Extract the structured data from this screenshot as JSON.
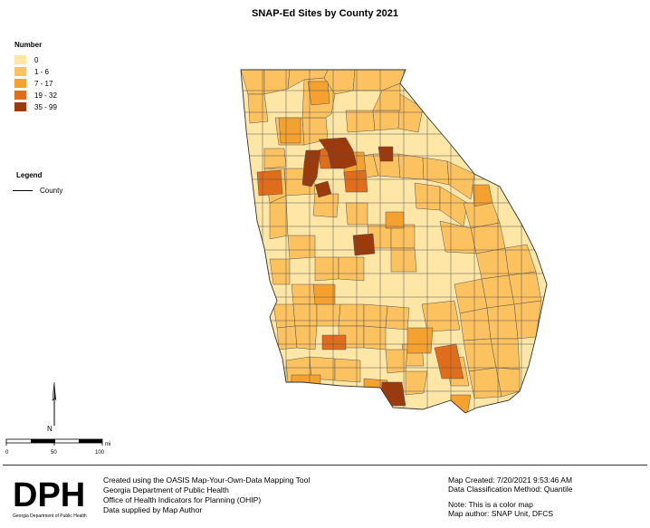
{
  "title": "SNAP-Ed Sites by County 2021",
  "number_legend": {
    "heading": "Number",
    "classes": [
      {
        "label": "0",
        "color": "#fde6a6"
      },
      {
        "label": "1 - 6",
        "color": "#fbc25f"
      },
      {
        "label": "7 - 17",
        "color": "#f4a130"
      },
      {
        "label": "19 - 32",
        "color": "#df6d1b"
      },
      {
        "label": "35 - 99",
        "color": "#9c3a0c"
      }
    ]
  },
  "layer_legend": {
    "heading": "Legend",
    "item": "County"
  },
  "north_arrow": {
    "letter": "N"
  },
  "scale": {
    "ticks": [
      "0",
      "50",
      "100"
    ],
    "unit": "mi"
  },
  "logo": {
    "text": "DPH",
    "caption": "Georgia Department of Public Health"
  },
  "credits": [
    "Created using the OASIS Map-Your-Own-Data Mapping Tool",
    "Georgia Department of Public Health",
    "Office of Health Indicators for Planning (OHIP)",
    "Data supplied by Map Author"
  ],
  "map_info": {
    "created": "Map Created: 7/20/2021 9:53:46 AM",
    "method": "Data Classification Method: Quantile",
    "note": "Note: This is a color map",
    "author": "Map author: SNAP Unit, DFCS"
  }
}
